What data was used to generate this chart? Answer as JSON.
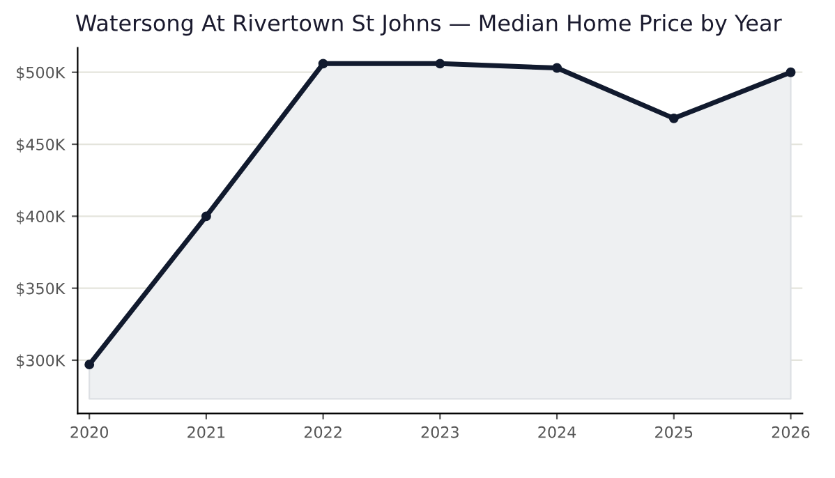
{
  "chart_data": {
    "type": "area",
    "title": "Watersong At Rivertown St Johns — Median Home Price by Year",
    "x": [
      2020,
      2021,
      2022,
      2023,
      2024,
      2025,
      2026
    ],
    "series": [
      {
        "color": "#111a2e",
        "values": [
          297000,
          400000,
          506000,
          506000,
          503000,
          468000,
          500000
        ]
      }
    ],
    "xlim": [
      2019.9,
      2026.1
    ],
    "xticks": [
      2020,
      2021,
      2022,
      2023,
      2024,
      2025,
      2026
    ],
    "ylim": [
      263000,
      517000
    ],
    "yticks": [
      {
        "value": 300000,
        "label": "$300K"
      },
      {
        "value": 350000,
        "label": "$350K"
      },
      {
        "value": 400000,
        "label": "$400K"
      },
      {
        "value": 450000,
        "label": "$450K"
      },
      {
        "value": 500000,
        "label": "$500K"
      }
    ],
    "grid": "y",
    "marker": "circle"
  }
}
